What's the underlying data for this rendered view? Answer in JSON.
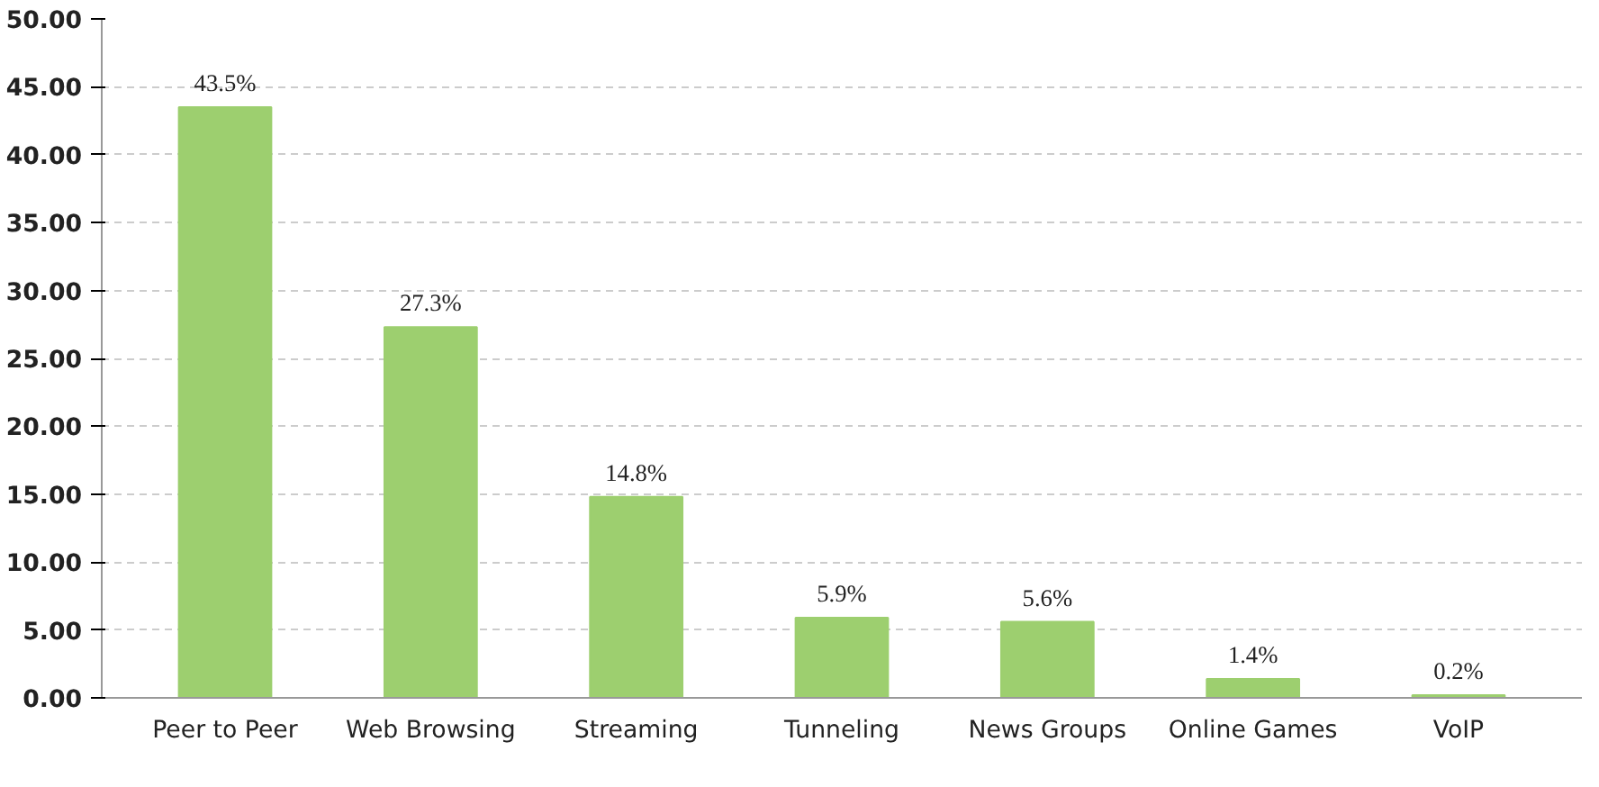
{
  "chart_data": {
    "type": "bar",
    "categories": [
      "Peer to Peer",
      "Web Browsing",
      "Streaming",
      "Tunneling",
      "News Groups",
      "Online Games",
      "VoIP"
    ],
    "values": [
      43.5,
      27.3,
      14.8,
      5.9,
      5.6,
      1.4,
      0.2
    ],
    "value_labels": [
      "43.5%",
      "27.3%",
      "14.8%",
      "5.9%",
      "5.6%",
      "1.4%",
      "0.2%"
    ],
    "color": "#9dcf6f",
    "ylim": [
      0,
      50
    ],
    "yticks": [
      {
        "value": 0,
        "label": "0.00"
      },
      {
        "value": 5,
        "label": "5.00"
      },
      {
        "value": 10,
        "label": "10.00"
      },
      {
        "value": 15,
        "label": "15.00"
      },
      {
        "value": 20,
        "label": "20.00"
      },
      {
        "value": 25,
        "label": "25.00"
      },
      {
        "value": 30,
        "label": "30.00"
      },
      {
        "value": 35,
        "label": "35.00"
      },
      {
        "value": 40,
        "label": "40.00"
      },
      {
        "value": 45,
        "label": "45.00"
      },
      {
        "value": 50,
        "label": "50.00"
      }
    ],
    "grid": "y"
  }
}
